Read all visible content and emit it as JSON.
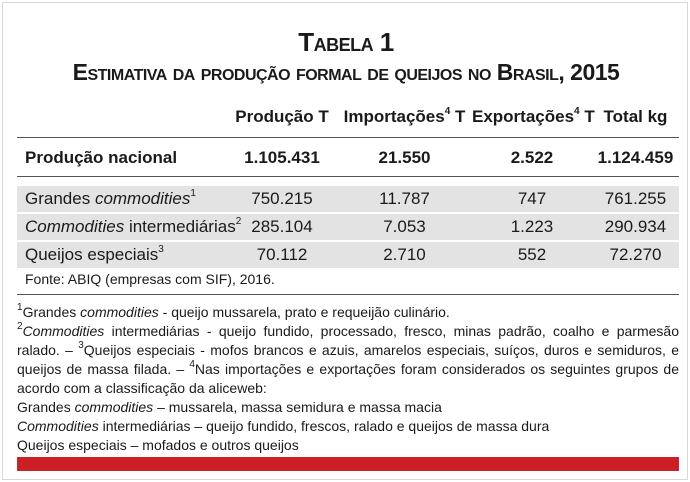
{
  "title": "Tabela 1",
  "subtitle": "Estimativa da produção formal de queijos no Brasil, 2015",
  "table": {
    "header": [
      [
        "Produção",
        "T"
      ],
      [
        "Importações",
        "4",
        "T"
      ],
      [
        "Exportações",
        "4",
        "T"
      ],
      [
        "Total kg"
      ]
    ],
    "total": {
      "label": "Produção nacional",
      "cells": [
        "1.105.431",
        "21.550",
        "2.522",
        "1.124.459"
      ]
    },
    "rows": [
      {
        "label": [
          "Grandes",
          "commodities",
          "1"
        ],
        "cells": [
          "750.215",
          "11.787",
          "747",
          "761.255"
        ]
      },
      {
        "label": [
          "Commodities",
          "intermediárias",
          "2"
        ],
        "cells": [
          "285.104",
          "7.053",
          "1.223",
          "290.934"
        ]
      },
      {
        "label": [
          "Queijos especiais",
          "3"
        ],
        "cells": [
          "70.112",
          "2.710",
          "552",
          "72.270"
        ]
      }
    ]
  },
  "source": "Fonte: ABIQ (empresas com SIF), 2016.",
  "notes": [
    [
      "1",
      "Grandes ",
      "commodities",
      " - queijo mussarela, prato e requeijão culinário."
    ],
    [
      "2",
      "Commodities",
      " intermediárias - queijo fundido, processado, fresco, minas padrão, coalho e parmesão ralado. – ",
      "3",
      "Queijos especiais - mofos brancos e azuis, amarelos especiais, suíços, duros e semiduros, e queijos de massa filada. – ",
      "4",
      "Nas importações e exportações foram considerados os seguintes grupos de acordo com a classificação da aliceweb:"
    ],
    [
      "Grandes ",
      "commodities",
      " – mussarela, massa semidura e massa macia"
    ],
    [
      "Commodities",
      " intermediárias – queijo fundido, frescos, ralado e queijos de massa dura"
    ],
    [
      "Queijos especiais – mofados e outros queijos"
    ]
  ]
}
